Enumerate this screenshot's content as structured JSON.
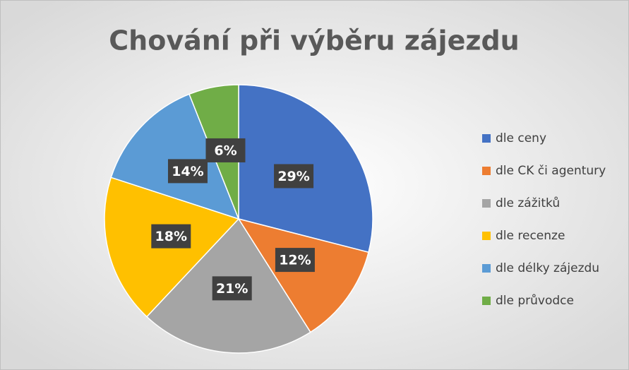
{
  "chart_data": {
    "type": "pie",
    "title": "Chování při výběru zájezdu",
    "categories": [
      "dle ceny",
      "dle CK či agentury",
      "dle zážitků",
      "dle recenze",
      "dle délky zájezdu",
      "dle průvodce"
    ],
    "values": [
      29,
      12,
      21,
      18,
      14,
      6
    ],
    "value_labels": [
      "29%",
      "12%",
      "21%",
      "18%",
      "14%",
      "6%"
    ],
    "colors": [
      "#4472c4",
      "#ed7d31",
      "#a5a5a5",
      "#ffc000",
      "#5b9bd5",
      "#70ad47"
    ],
    "legend": "right"
  }
}
